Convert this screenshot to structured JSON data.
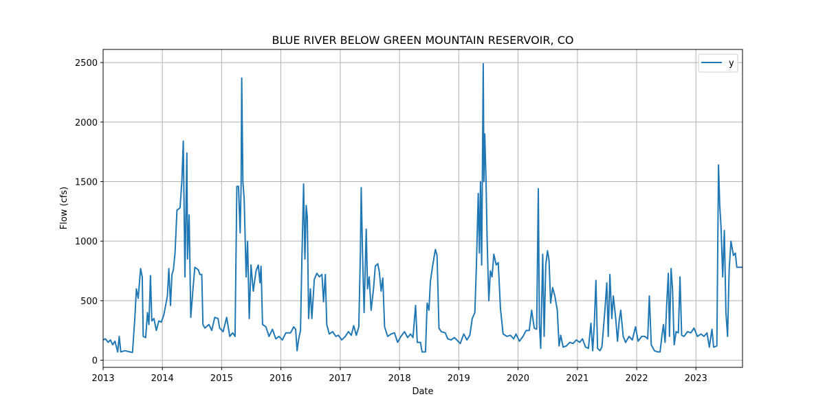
{
  "chart_data": {
    "type": "line",
    "title": "BLUE RIVER BELOW GREEN MOUNTAIN RESERVOIR, CO",
    "xlabel": "Date",
    "ylabel": "Flow (cfs)",
    "xlim": [
      "2013-01-01",
      "2023-10-15"
    ],
    "ylim": [
      -60,
      2610
    ],
    "grid": true,
    "legend_position": "top-right",
    "x_ticks": [
      "2013",
      "2014",
      "2015",
      "2016",
      "2017",
      "2018",
      "2019",
      "2020",
      "2021",
      "2022",
      "2023"
    ],
    "y_ticks": [
      0,
      500,
      1000,
      1500,
      2000,
      2500
    ],
    "colors": {
      "line": "#1f77b4",
      "grid": "#b0b0b0"
    },
    "series": [
      {
        "name": "y",
        "points": [
          [
            "2013-01-01",
            170
          ],
          [
            "2013-01-15",
            180
          ],
          [
            "2013-02-01",
            150
          ],
          [
            "2013-02-15",
            170
          ],
          [
            "2013-03-01",
            130
          ],
          [
            "2013-03-15",
            160
          ],
          [
            "2013-04-01",
            70
          ],
          [
            "2013-04-10",
            200
          ],
          [
            "2013-04-20",
            70
          ],
          [
            "2013-05-15",
            80
          ],
          [
            "2013-06-15",
            70
          ],
          [
            "2013-07-01",
            65
          ],
          [
            "2013-07-15",
            340
          ],
          [
            "2013-07-25",
            600
          ],
          [
            "2013-08-05",
            520
          ],
          [
            "2013-08-20",
            770
          ],
          [
            "2013-08-30",
            700
          ],
          [
            "2013-09-05",
            200
          ],
          [
            "2013-09-20",
            190
          ],
          [
            "2013-10-01",
            400
          ],
          [
            "2013-10-10",
            300
          ],
          [
            "2013-10-20",
            710
          ],
          [
            "2013-10-28",
            330
          ],
          [
            "2013-11-10",
            350
          ],
          [
            "2013-11-25",
            250
          ],
          [
            "2013-12-10",
            330
          ],
          [
            "2013-12-25",
            320
          ],
          [
            "2014-01-10",
            380
          ],
          [
            "2014-02-01",
            540
          ],
          [
            "2014-02-10",
            770
          ],
          [
            "2014-02-20",
            460
          ],
          [
            "2014-03-01",
            720
          ],
          [
            "2014-03-10",
            760
          ],
          [
            "2014-03-20",
            900
          ],
          [
            "2014-04-01",
            1260
          ],
          [
            "2014-04-20",
            1280
          ],
          [
            "2014-05-01",
            1500
          ],
          [
            "2014-05-10",
            1840
          ],
          [
            "2014-05-20",
            700
          ],
          [
            "2014-06-01",
            1740
          ],
          [
            "2014-06-05",
            850
          ],
          [
            "2014-06-15",
            1220
          ],
          [
            "2014-06-25",
            360
          ],
          [
            "2014-07-10",
            620
          ],
          [
            "2014-07-20",
            780
          ],
          [
            "2014-08-10",
            760
          ],
          [
            "2014-08-20",
            720
          ],
          [
            "2014-09-01",
            720
          ],
          [
            "2014-09-08",
            300
          ],
          [
            "2014-09-20",
            270
          ],
          [
            "2014-10-15",
            300
          ],
          [
            "2014-11-01",
            250
          ],
          [
            "2014-11-20",
            360
          ],
          [
            "2014-12-10",
            350
          ],
          [
            "2014-12-20",
            270
          ],
          [
            "2015-01-10",
            240
          ],
          [
            "2015-02-01",
            360
          ],
          [
            "2015-02-20",
            200
          ],
          [
            "2015-03-10",
            230
          ],
          [
            "2015-03-25",
            200
          ],
          [
            "2015-04-05",
            1460
          ],
          [
            "2015-04-15",
            1460
          ],
          [
            "2015-04-25",
            1070
          ],
          [
            "2015-05-01",
            1470
          ],
          [
            "2015-05-05",
            2370
          ],
          [
            "2015-05-12",
            1500
          ],
          [
            "2015-05-20",
            1350
          ],
          [
            "2015-06-01",
            700
          ],
          [
            "2015-06-10",
            1000
          ],
          [
            "2015-06-20",
            350
          ],
          [
            "2015-07-01",
            800
          ],
          [
            "2015-07-15",
            580
          ],
          [
            "2015-08-01",
            750
          ],
          [
            "2015-08-15",
            800
          ],
          [
            "2015-08-25",
            650
          ],
          [
            "2015-09-01",
            790
          ],
          [
            "2015-09-10",
            300
          ],
          [
            "2015-10-01",
            280
          ],
          [
            "2015-10-20",
            200
          ],
          [
            "2015-11-10",
            260
          ],
          [
            "2015-12-01",
            180
          ],
          [
            "2015-12-20",
            200
          ],
          [
            "2016-01-10",
            170
          ],
          [
            "2016-02-01",
            230
          ],
          [
            "2016-03-01",
            230
          ],
          [
            "2016-03-20",
            280
          ],
          [
            "2016-04-01",
            260
          ],
          [
            "2016-04-10",
            80
          ],
          [
            "2016-04-20",
            180
          ],
          [
            "2016-05-01",
            250
          ],
          [
            "2016-05-10",
            870
          ],
          [
            "2016-05-20",
            1480
          ],
          [
            "2016-05-28",
            850
          ],
          [
            "2016-06-05",
            1300
          ],
          [
            "2016-06-12",
            1200
          ],
          [
            "2016-06-20",
            350
          ],
          [
            "2016-07-01",
            600
          ],
          [
            "2016-07-10",
            350
          ],
          [
            "2016-07-25",
            680
          ],
          [
            "2016-08-10",
            730
          ],
          [
            "2016-08-25",
            700
          ],
          [
            "2016-09-10",
            720
          ],
          [
            "2016-09-20",
            490
          ],
          [
            "2016-10-01",
            720
          ],
          [
            "2016-10-10",
            300
          ],
          [
            "2016-10-25",
            220
          ],
          [
            "2016-11-15",
            240
          ],
          [
            "2016-12-05",
            200
          ],
          [
            "2016-12-20",
            210
          ],
          [
            "2017-01-10",
            170
          ],
          [
            "2017-02-01",
            200
          ],
          [
            "2017-02-20",
            240
          ],
          [
            "2017-03-10",
            210
          ],
          [
            "2017-03-25",
            290
          ],
          [
            "2017-04-10",
            210
          ],
          [
            "2017-04-25",
            280
          ],
          [
            "2017-05-05",
            900
          ],
          [
            "2017-05-10",
            1450
          ],
          [
            "2017-05-18",
            900
          ],
          [
            "2017-05-28",
            400
          ],
          [
            "2017-06-10",
            1100
          ],
          [
            "2017-06-18",
            600
          ],
          [
            "2017-06-28",
            700
          ],
          [
            "2017-07-10",
            420
          ],
          [
            "2017-07-25",
            600
          ],
          [
            "2017-08-05",
            790
          ],
          [
            "2017-08-20",
            810
          ],
          [
            "2017-08-30",
            740
          ],
          [
            "2017-09-10",
            580
          ],
          [
            "2017-09-20",
            690
          ],
          [
            "2017-10-01",
            280
          ],
          [
            "2017-10-20",
            200
          ],
          [
            "2017-11-10",
            220
          ],
          [
            "2017-12-01",
            230
          ],
          [
            "2017-12-20",
            150
          ],
          [
            "2018-01-10",
            200
          ],
          [
            "2018-02-01",
            240
          ],
          [
            "2018-02-20",
            190
          ],
          [
            "2018-03-10",
            220
          ],
          [
            "2018-03-25",
            190
          ],
          [
            "2018-04-10",
            460
          ],
          [
            "2018-04-20",
            150
          ],
          [
            "2018-05-10",
            150
          ],
          [
            "2018-05-20",
            70
          ],
          [
            "2018-06-10",
            70
          ],
          [
            "2018-06-20",
            480
          ],
          [
            "2018-07-01",
            420
          ],
          [
            "2018-07-10",
            660
          ],
          [
            "2018-07-25",
            800
          ],
          [
            "2018-08-10",
            930
          ],
          [
            "2018-08-20",
            880
          ],
          [
            "2018-09-01",
            270
          ],
          [
            "2018-09-15",
            240
          ],
          [
            "2018-10-10",
            230
          ],
          [
            "2018-10-25",
            180
          ],
          [
            "2018-11-15",
            170
          ],
          [
            "2018-12-05",
            190
          ],
          [
            "2018-12-20",
            170
          ],
          [
            "2019-01-10",
            140
          ],
          [
            "2019-02-01",
            220
          ],
          [
            "2019-02-20",
            170
          ],
          [
            "2019-03-10",
            210
          ],
          [
            "2019-03-25",
            350
          ],
          [
            "2019-04-10",
            400
          ],
          [
            "2019-04-20",
            800
          ],
          [
            "2019-05-01",
            1400
          ],
          [
            "2019-05-08",
            900
          ],
          [
            "2019-05-15",
            1500
          ],
          [
            "2019-05-22",
            800
          ],
          [
            "2019-06-01",
            2490
          ],
          [
            "2019-06-05",
            1500
          ],
          [
            "2019-06-10",
            1900
          ],
          [
            "2019-06-18",
            1500
          ],
          [
            "2019-06-25",
            1000
          ],
          [
            "2019-07-05",
            500
          ],
          [
            "2019-07-15",
            750
          ],
          [
            "2019-07-25",
            700
          ],
          [
            "2019-08-05",
            890
          ],
          [
            "2019-08-20",
            800
          ],
          [
            "2019-09-01",
            820
          ],
          [
            "2019-09-15",
            430
          ],
          [
            "2019-10-01",
            220
          ],
          [
            "2019-10-25",
            200
          ],
          [
            "2019-11-15",
            210
          ],
          [
            "2019-12-05",
            180
          ],
          [
            "2019-12-20",
            220
          ],
          [
            "2020-01-10",
            160
          ],
          [
            "2020-02-01",
            200
          ],
          [
            "2020-02-20",
            250
          ],
          [
            "2020-03-10",
            250
          ],
          [
            "2020-03-25",
            420
          ],
          [
            "2020-04-10",
            270
          ],
          [
            "2020-04-25",
            260
          ],
          [
            "2020-05-05",
            1440
          ],
          [
            "2020-05-12",
            300
          ],
          [
            "2020-05-20",
            100
          ],
          [
            "2020-06-01",
            890
          ],
          [
            "2020-06-10",
            200
          ],
          [
            "2020-06-20",
            800
          ],
          [
            "2020-07-01",
            920
          ],
          [
            "2020-07-10",
            840
          ],
          [
            "2020-07-20",
            480
          ],
          [
            "2020-08-01",
            610
          ],
          [
            "2020-08-15",
            540
          ],
          [
            "2020-08-30",
            420
          ],
          [
            "2020-09-10",
            120
          ],
          [
            "2020-09-20",
            210
          ],
          [
            "2020-10-05",
            110
          ],
          [
            "2020-10-25",
            120
          ],
          [
            "2020-11-15",
            150
          ],
          [
            "2020-12-05",
            140
          ],
          [
            "2020-12-25",
            170
          ],
          [
            "2021-01-15",
            150
          ],
          [
            "2021-02-01",
            180
          ],
          [
            "2021-02-20",
            110
          ],
          [
            "2021-03-10",
            100
          ],
          [
            "2021-03-25",
            310
          ],
          [
            "2021-04-05",
            80
          ],
          [
            "2021-04-15",
            300
          ],
          [
            "2021-04-25",
            670
          ],
          [
            "2021-05-05",
            100
          ],
          [
            "2021-05-20",
            80
          ],
          [
            "2021-06-01",
            110
          ],
          [
            "2021-06-20",
            430
          ],
          [
            "2021-07-01",
            650
          ],
          [
            "2021-07-10",
            200
          ],
          [
            "2021-07-20",
            720
          ],
          [
            "2021-08-01",
            350
          ],
          [
            "2021-08-10",
            540
          ],
          [
            "2021-08-25",
            350
          ],
          [
            "2021-09-05",
            160
          ],
          [
            "2021-09-15",
            330
          ],
          [
            "2021-09-25",
            420
          ],
          [
            "2021-10-10",
            200
          ],
          [
            "2021-10-25",
            150
          ],
          [
            "2021-11-15",
            200
          ],
          [
            "2021-12-05",
            170
          ],
          [
            "2021-12-25",
            280
          ],
          [
            "2022-01-10",
            160
          ],
          [
            "2022-02-01",
            200
          ],
          [
            "2022-02-20",
            200
          ],
          [
            "2022-03-10",
            180
          ],
          [
            "2022-03-20",
            540
          ],
          [
            "2022-04-01",
            130
          ],
          [
            "2022-04-20",
            80
          ],
          [
            "2022-05-10",
            70
          ],
          [
            "2022-05-25",
            70
          ],
          [
            "2022-06-05",
            200
          ],
          [
            "2022-06-15",
            300
          ],
          [
            "2022-06-25",
            150
          ],
          [
            "2022-07-05",
            460
          ],
          [
            "2022-07-15",
            730
          ],
          [
            "2022-07-22",
            200
          ],
          [
            "2022-08-01",
            770
          ],
          [
            "2022-08-10",
            600
          ],
          [
            "2022-08-20",
            130
          ],
          [
            "2022-09-01",
            240
          ],
          [
            "2022-09-15",
            230
          ],
          [
            "2022-09-25",
            700
          ],
          [
            "2022-10-05",
            210
          ],
          [
            "2022-10-20",
            200
          ],
          [
            "2022-11-10",
            240
          ],
          [
            "2022-12-01",
            230
          ],
          [
            "2022-12-20",
            270
          ],
          [
            "2023-01-10",
            200
          ],
          [
            "2023-02-01",
            220
          ],
          [
            "2023-02-20",
            200
          ],
          [
            "2023-03-10",
            230
          ],
          [
            "2023-03-25",
            110
          ],
          [
            "2023-04-10",
            260
          ],
          [
            "2023-04-20",
            110
          ],
          [
            "2023-05-10",
            120
          ],
          [
            "2023-05-20",
            1640
          ],
          [
            "2023-05-28",
            1300
          ],
          [
            "2023-06-05",
            1120
          ],
          [
            "2023-06-15",
            700
          ],
          [
            "2023-06-25",
            1090
          ],
          [
            "2023-07-05",
            400
          ],
          [
            "2023-07-15",
            200
          ],
          [
            "2023-07-25",
            760
          ],
          [
            "2023-08-05",
            1000
          ],
          [
            "2023-08-20",
            880
          ],
          [
            "2023-09-01",
            900
          ],
          [
            "2023-09-10",
            780
          ],
          [
            "2023-10-15",
            780
          ]
        ]
      }
    ]
  }
}
